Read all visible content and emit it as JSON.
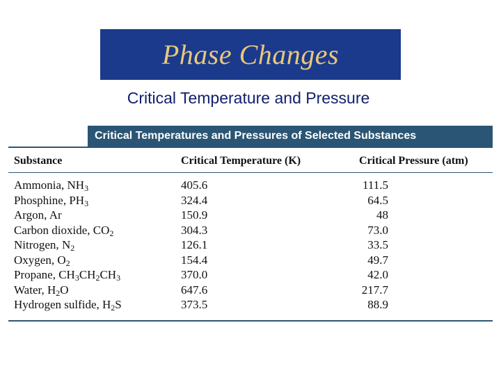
{
  "title": "Phase Changes",
  "subtitle": "Critical Temperature and Pressure",
  "table": {
    "caption": "Critical Temperatures and Pressures of Selected Substances",
    "headers": [
      "Substance",
      "Critical Temperature (K)",
      "Critical Pressure (atm)"
    ],
    "rows": [
      {
        "name": "Ammonia, ",
        "formula": [
          "NH",
          {
            "sub": "3"
          }
        ],
        "temp": "405.6",
        "pressure": "111.5"
      },
      {
        "name": "Phosphine, ",
        "formula": [
          "PH",
          {
            "sub": "3"
          }
        ],
        "temp": "324.4",
        "pressure": "64.5"
      },
      {
        "name": "Argon, ",
        "formula": [
          "Ar"
        ],
        "temp": "150.9",
        "pressure": "48"
      },
      {
        "name": "Carbon dioxide, ",
        "formula": [
          "CO",
          {
            "sub": "2"
          }
        ],
        "temp": "304.3",
        "pressure": "73.0"
      },
      {
        "name": "Nitrogen, ",
        "formula": [
          "N",
          {
            "sub": "2"
          }
        ],
        "temp": "126.1",
        "pressure": "33.5"
      },
      {
        "name": "Oxygen, ",
        "formula": [
          "O",
          {
            "sub": "2"
          }
        ],
        "temp": "154.4",
        "pressure": "49.7"
      },
      {
        "name": "Propane, ",
        "formula": [
          "CH",
          {
            "sub": "3"
          },
          "CH",
          {
            "sub": "2"
          },
          "CH",
          {
            "sub": "3"
          }
        ],
        "temp": "370.0",
        "pressure": "42.0"
      },
      {
        "name": "Water, ",
        "formula": [
          "H",
          {
            "sub": "2"
          },
          "O"
        ],
        "temp": "647.6",
        "pressure": "217.7"
      },
      {
        "name": "Hydrogen sulfide, ",
        "formula": [
          "H",
          {
            "sub": "2"
          },
          "S"
        ],
        "temp": "373.5",
        "pressure": "88.9"
      }
    ]
  }
}
